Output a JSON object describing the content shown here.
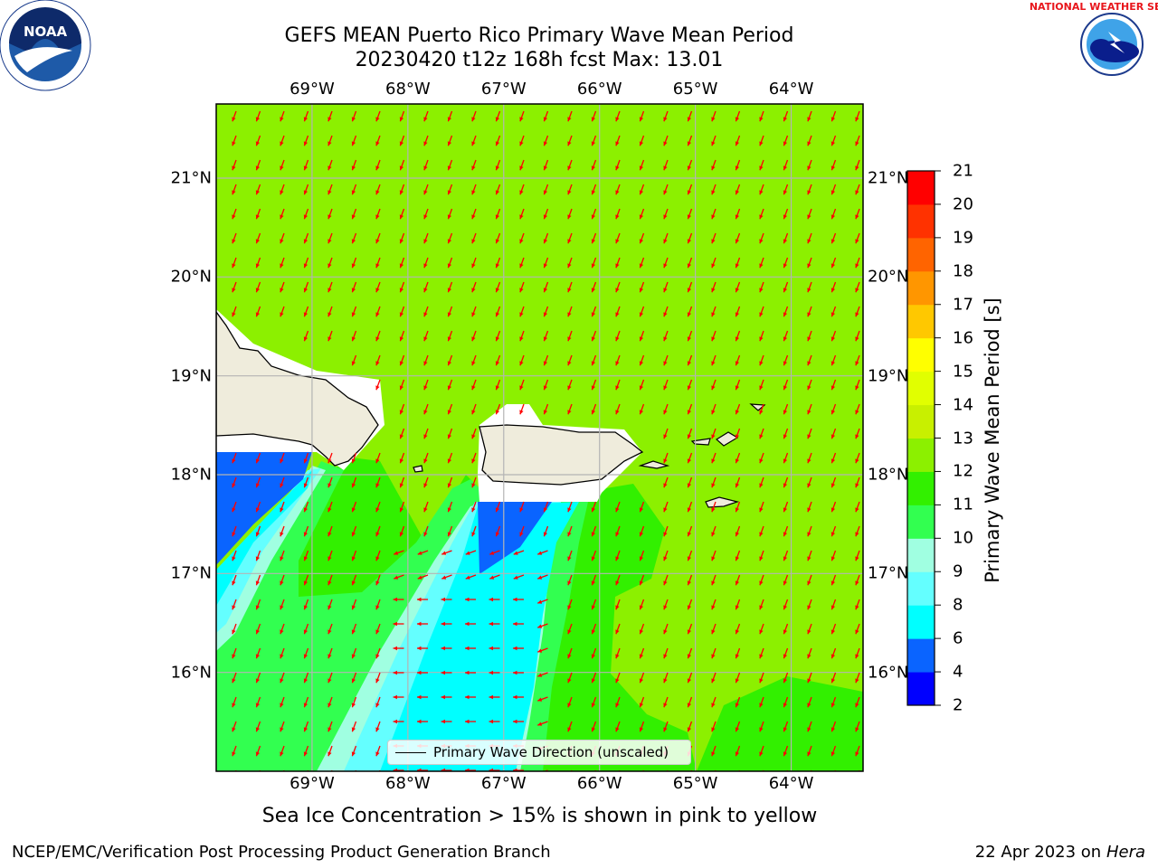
{
  "title": {
    "line1": "GEFS MEAN Puerto Rico Primary Wave Mean Period",
    "line2": "20230420 t12z 168h fcst   Max: 13.01"
  },
  "map": {
    "lon_labels": [
      "69°W",
      "68°W",
      "67°W",
      "66°W",
      "65°W",
      "64°W"
    ],
    "lon_values": [
      -69,
      -68,
      -67,
      -66,
      -65,
      -64
    ],
    "lat_labels": [
      "21°N",
      "20°N",
      "19°N",
      "18°N",
      "17°N",
      "16°N"
    ],
    "lat_values": [
      21,
      20,
      19,
      18,
      17,
      16
    ],
    "extent": {
      "lon_min": -70,
      "lon_max": -63.25,
      "lat_min": 15,
      "lat_max": 21.75
    },
    "grid": true,
    "vector_direction": "toward south-southwest (north-northeast swell)",
    "vector_color": "#ff0000"
  },
  "colorbar": {
    "title": "Primary Wave Mean Period [s]",
    "ticks": [
      "21",
      "20",
      "19",
      "18",
      "17",
      "16",
      "15",
      "14",
      "13",
      "12",
      "11",
      "10",
      "9",
      "8",
      "6",
      "4",
      "2"
    ],
    "values": [
      2,
      4,
      6,
      8,
      9,
      10,
      11,
      12,
      13,
      14,
      15,
      16,
      17,
      18,
      19,
      20,
      21
    ],
    "colors": [
      "#0000ff",
      "#0a64ff",
      "#00ffff",
      "#64ffff",
      "#a0ffe1",
      "#32ff50",
      "#32f000",
      "#8cf000",
      "#c8f000",
      "#e1ff00",
      "#ffff00",
      "#ffc800",
      "#ff9600",
      "#ff6400",
      "#ff3200",
      "#ff0000"
    ]
  },
  "legend": {
    "label": "Primary Wave Direction (unscaled)"
  },
  "note": "Sea Ice Concentration > 15% is shown in pink to yellow",
  "footer": {
    "left": "NCEP/EMC/Verification Post Processing Product Generation Branch",
    "right_date": "22 Apr 2023 on ",
    "right_machine": "Hera"
  },
  "logos": {
    "left": "NOAA",
    "right": "NATIONAL WEATHER SERVICE"
  }
}
